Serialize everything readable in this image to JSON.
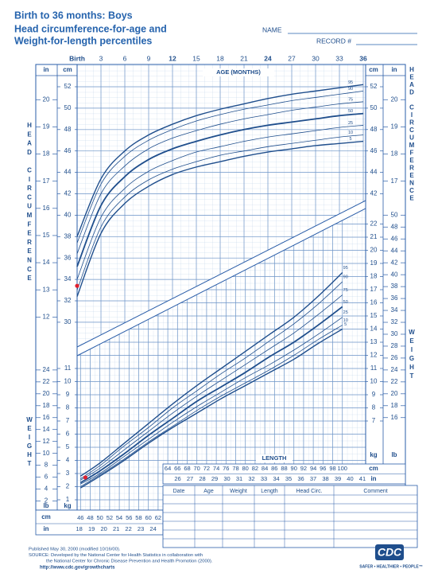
{
  "header": {
    "title": "Birth to 36 months: Boys",
    "subtitle_lines": [
      "Head circumference-for-age and",
      "Weight-for-length percentiles"
    ],
    "name_label": "NAME",
    "record_label": "RECORD #"
  },
  "chart_data": [
    {
      "type": "line",
      "x_label": "AGE (MONTHS)",
      "y_label": "HEAD CIRCUMFERENCE",
      "y_unit": "cm",
      "y2_unit": "in",
      "x": [
        0,
        3,
        6,
        9,
        12,
        15,
        18,
        21,
        24,
        27,
        30,
        33,
        36
      ],
      "xlim": [
        0,
        36
      ],
      "xticks": [
        {
          "value": 0,
          "label": "Birth"
        },
        3,
        6,
        9,
        12,
        15,
        18,
        21,
        24,
        27,
        30,
        33,
        36
      ],
      "ylim": [
        28,
        53
      ],
      "yticks": [
        30,
        32,
        34,
        36,
        38,
        40,
        42,
        44,
        46,
        48,
        50,
        52
      ],
      "y2lim": [
        11.02,
        20.87
      ],
      "y2ticks": [
        12,
        13,
        14,
        15,
        16,
        17,
        18,
        19,
        20
      ],
      "grid": true,
      "series": [
        {
          "name": "95",
          "color": "#1f4e8c",
          "values": [
            38.0,
            43.4,
            46.0,
            47.5,
            48.5,
            49.3,
            49.9,
            50.4,
            50.9,
            51.3,
            51.6,
            51.9,
            52.2
          ]
        },
        {
          "name": "90",
          "color": "#1f4e8c",
          "values": [
            37.4,
            42.9,
            45.5,
            47.0,
            48.0,
            48.8,
            49.4,
            49.9,
            50.3,
            50.7,
            51.0,
            51.3,
            51.6
          ]
        },
        {
          "name": "75",
          "color": "#1f4e8c",
          "values": [
            36.4,
            42.0,
            44.6,
            46.2,
            47.2,
            47.9,
            48.5,
            49.0,
            49.4,
            49.8,
            50.1,
            50.4,
            50.6
          ]
        },
        {
          "name": "50",
          "color": "#1f4e8c",
          "values": [
            35.2,
            40.9,
            43.6,
            45.2,
            46.2,
            46.9,
            47.5,
            48.0,
            48.4,
            48.7,
            49.0,
            49.3,
            49.5
          ]
        },
        {
          "name": "25",
          "color": "#1f4e8c",
          "values": [
            34.0,
            39.8,
            42.5,
            44.1,
            45.1,
            45.9,
            46.4,
            46.9,
            47.3,
            47.6,
            47.9,
            48.2,
            48.4
          ]
        },
        {
          "name": "10",
          "color": "#1f4e8c",
          "values": [
            33.0,
            38.9,
            41.7,
            43.3,
            44.3,
            45.0,
            45.6,
            46.0,
            46.4,
            46.7,
            47.0,
            47.3,
            47.5
          ]
        },
        {
          "name": "5",
          "color": "#1f4e8c",
          "values": [
            32.4,
            38.3,
            41.1,
            42.7,
            43.8,
            44.5,
            45.0,
            45.5,
            45.9,
            46.2,
            46.5,
            46.7,
            46.9
          ]
        }
      ],
      "points": {
        "color": "#e0202e",
        "x": [
          0
        ],
        "values": [
          33.4
        ]
      }
    },
    {
      "type": "line",
      "x_label": "LENGTH",
      "y_label": "WEIGHT",
      "x_unit": "cm",
      "x2_unit": "in",
      "y_unit": "kg",
      "y2_unit": "lb",
      "x": [
        46,
        50,
        55,
        60,
        65,
        70,
        75,
        80,
        85,
        90,
        95,
        100
      ],
      "xlim": [
        45.3,
        104.8
      ],
      "xticks": [
        46,
        48,
        50,
        52,
        54,
        56,
        58,
        60,
        62,
        64,
        66,
        68,
        70,
        72,
        74,
        76,
        78,
        80,
        82,
        84,
        86,
        88,
        90,
        92,
        94,
        96,
        98,
        100
      ],
      "x2lim": [
        17.83,
        41.26
      ],
      "x2ticks": [
        18,
        19,
        20,
        21,
        22,
        23,
        24,
        26,
        27,
        28,
        29,
        30,
        31,
        32,
        33,
        34,
        35,
        36,
        37,
        38,
        39,
        40,
        41
      ],
      "ylim": [
        0.2,
        23.2
      ],
      "yticks": [
        1,
        2,
        3,
        4,
        5,
        6,
        7,
        8,
        9,
        10,
        11,
        12,
        13,
        14,
        15,
        16,
        17,
        18,
        19,
        20,
        21,
        22
      ],
      "y2lim": [
        0.44,
        51.15
      ],
      "y2ticks": [
        2,
        4,
        6,
        8,
        10,
        12,
        14,
        16,
        18,
        20,
        22,
        24,
        26,
        28,
        30,
        32,
        34,
        36,
        38,
        40,
        42,
        44,
        46,
        48,
        50
      ],
      "grid": true,
      "series": [
        {
          "name": "95",
          "color": "#1f4e8c",
          "values": [
            2.8,
            3.8,
            5.3,
            6.8,
            8.3,
            9.7,
            11.0,
            12.3,
            13.6,
            14.9,
            16.5,
            18.3
          ]
        },
        {
          "name": "90",
          "color": "#1f4e8c",
          "values": [
            2.6,
            3.6,
            5.1,
            6.5,
            8.0,
            9.3,
            10.6,
            11.8,
            13.1,
            14.4,
            15.9,
            17.6
          ]
        },
        {
          "name": "75",
          "color": "#1f4e8c",
          "values": [
            2.5,
            3.4,
            4.8,
            6.2,
            7.6,
            8.9,
            10.1,
            11.3,
            12.5,
            13.7,
            15.1,
            16.6
          ]
        },
        {
          "name": "50",
          "color": "#1f4e8c",
          "values": [
            2.3,
            3.2,
            4.5,
            5.9,
            7.2,
            8.5,
            9.6,
            10.7,
            11.9,
            13.0,
            14.3,
            15.7
          ]
        },
        {
          "name": "25",
          "color": "#1f4e8c",
          "values": [
            2.2,
            3.0,
            4.3,
            5.6,
            6.9,
            8.1,
            9.2,
            10.3,
            11.3,
            12.4,
            13.6,
            14.9
          ]
        },
        {
          "name": "10",
          "color": "#1f4e8c",
          "values": [
            2.0,
            2.9,
            4.1,
            5.4,
            6.6,
            7.8,
            8.9,
            9.9,
            10.9,
            12.0,
            13.2,
            14.3
          ]
        },
        {
          "name": "5",
          "color": "#1f4e8c",
          "values": [
            1.9,
            2.8,
            4.0,
            5.3,
            6.5,
            7.6,
            8.7,
            9.7,
            10.7,
            11.7,
            12.9,
            14.0
          ]
        }
      ],
      "points": {
        "color": "#e0202e",
        "x": [
          47
        ],
        "values": [
          2.7
        ]
      }
    }
  ],
  "table": {
    "columns": [
      "Date",
      "Age",
      "Weight",
      "Length",
      "Head Circ.",
      "Comment"
    ]
  },
  "footer": {
    "lines": [
      "Published May 30, 2000 (modified 10/16/00).",
      "SOURCE: Developed by the National Center for Health Statistics in collaboration with",
      "the National Center for Chronic Disease Prevention and Health Promotion (2000)."
    ],
    "url": "http://www.cdc.gov/growthcharts",
    "logo": "CDC",
    "tagline": "SAFER • HEALTHIER • PEOPLE™"
  }
}
